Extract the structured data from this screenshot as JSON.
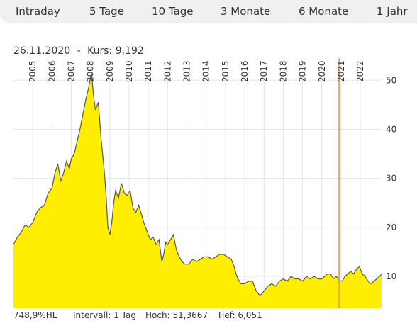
{
  "tabs": [
    {
      "label": "Intraday"
    },
    {
      "label": "5 Tage"
    },
    {
      "label": "10 Tage"
    },
    {
      "label": "3 Monate"
    },
    {
      "label": "6 Monate"
    },
    {
      "label": "1 Jahr"
    }
  ],
  "info": {
    "date": "26.11.2020",
    "separator": "-",
    "price_label": "Kurs:",
    "price_value": "9,192"
  },
  "footer": {
    "performance": "748,9%HL",
    "interval_label": "Intervall:",
    "interval_value": "1 Tag",
    "high_label": "Hoch:",
    "high_value": "51,3667",
    "low_label": "Tief:",
    "low_value": "6,051"
  },
  "colors": {
    "area_fill": "#ffee00",
    "line": "#555555",
    "marker": "#f0a050",
    "grid": "#e6e6e6"
  },
  "chart_data": {
    "type": "area",
    "x_ticks": [
      "2005",
      "2006",
      "2007",
      "2008",
      "2009",
      "2010",
      "2011",
      "2012",
      "2013",
      "2014",
      "2015",
      "2016",
      "2017",
      "2018",
      "2019",
      "2020",
      "2021",
      "2022"
    ],
    "y_ticks": [
      10,
      20,
      30,
      40,
      50
    ],
    "xlim": [
      2004.0,
      2023.1
    ],
    "ylim": [
      3.5,
      52.5
    ],
    "marker_x": 2020.9,
    "series": [
      {
        "x": [
          2004.0,
          2004.2,
          2004.4,
          2004.6,
          2004.8,
          2005.0,
          2005.2,
          2005.4,
          2005.6,
          2005.8,
          2006.0,
          2006.15,
          2006.3,
          2006.45,
          2006.6,
          2006.75,
          2006.9,
          2007.0,
          2007.15,
          2007.3,
          2007.45,
          2007.6,
          2007.75,
          2007.9,
          2007.97,
          2008.05,
          2008.15,
          2008.25,
          2008.4,
          2008.55,
          2008.7,
          2008.8,
          2008.9,
          2009.0,
          2009.1,
          2009.2,
          2009.3,
          2009.45,
          2009.6,
          2009.75,
          2009.9,
          2010.05,
          2010.2,
          2010.35,
          2010.5,
          2010.65,
          2010.8,
          2010.95,
          2011.1,
          2011.25,
          2011.4,
          2011.55,
          2011.7,
          2011.8,
          2011.9,
          2012.0,
          2012.15,
          2012.3,
          2012.45,
          2012.6,
          2012.75,
          2012.9,
          2013.1,
          2013.3,
          2013.5,
          2013.7,
          2013.9,
          2014.1,
          2014.3,
          2014.5,
          2014.7,
          2014.9,
          2015.1,
          2015.3,
          2015.45,
          2015.55,
          2015.65,
          2015.8,
          2016.0,
          2016.2,
          2016.4,
          2016.6,
          2016.8,
          2017.0,
          2017.2,
          2017.4,
          2017.6,
          2017.8,
          2018.0,
          2018.2,
          2018.4,
          2018.6,
          2018.8,
          2019.0,
          2019.2,
          2019.4,
          2019.6,
          2019.8,
          2020.0,
          2020.15,
          2020.3,
          2020.45,
          2020.6,
          2020.75,
          2020.9,
          2021.05,
          2021.2,
          2021.35,
          2021.5,
          2021.65,
          2021.8,
          2021.95,
          2022.1,
          2022.25,
          2022.4,
          2022.55,
          2022.7,
          2022.85,
          2023.0,
          2023.1
        ],
        "y": [
          16.5,
          18.0,
          19.0,
          20.5,
          20.0,
          21.0,
          23.0,
          24.0,
          24.5,
          27.0,
          28.0,
          31.0,
          33.0,
          29.5,
          31.0,
          33.5,
          32.0,
          34.0,
          35.0,
          37.5,
          40.0,
          43.0,
          46.0,
          48.5,
          50.0,
          51.3667,
          47.0,
          44.0,
          45.5,
          38.0,
          32.0,
          27.0,
          20.0,
          18.5,
          21.0,
          25.0,
          27.5,
          26.0,
          29.0,
          27.0,
          26.5,
          27.5,
          24.0,
          23.0,
          24.5,
          22.5,
          20.5,
          19.0,
          17.5,
          18.0,
          16.5,
          17.5,
          13.0,
          14.5,
          17.0,
          16.5,
          17.5,
          18.5,
          15.5,
          14.0,
          13.0,
          12.5,
          12.5,
          13.5,
          13.0,
          13.5,
          14.0,
          14.0,
          13.5,
          14.0,
          14.5,
          14.5,
          14.0,
          13.5,
          12.0,
          10.5,
          9.5,
          8.5,
          8.5,
          9.0,
          9.0,
          7.0,
          6.051,
          7.0,
          8.0,
          8.5,
          8.0,
          9.0,
          9.5,
          9.0,
          10.0,
          9.5,
          9.5,
          9.0,
          10.0,
          9.5,
          10.0,
          9.5,
          9.5,
          10.0,
          10.5,
          10.5,
          9.5,
          10.0,
          9.192,
          9.0,
          10.0,
          10.5,
          11.0,
          10.5,
          11.5,
          12.0,
          10.5,
          10.0,
          9.0,
          8.5,
          9.0,
          9.5,
          10.0,
          10.5
        ]
      }
    ]
  }
}
